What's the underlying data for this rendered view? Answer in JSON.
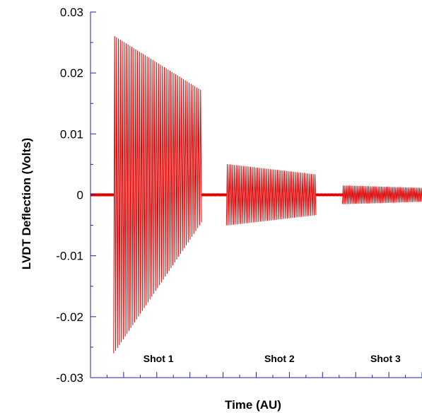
{
  "chart_data": {
    "type": "line",
    "title": "",
    "xlabel": "Time (AU)",
    "ylabel": "LVDT Deflection (Volts)",
    "ylim": [
      -0.03,
      0.03
    ],
    "yticks": [
      -0.03,
      -0.02,
      -0.01,
      0,
      0.01,
      0.02,
      0.03
    ],
    "ytick_labels": [
      "-0.03",
      "-0.02",
      "-0.01",
      "0",
      "0.01",
      "0.02",
      "0.03"
    ],
    "xlim": [
      0,
      100
    ],
    "grid": false,
    "legend": "none",
    "line_color": "#e00000",
    "axis_color": "#2222aa",
    "annotations": [
      "Shot 1",
      "Shot 2",
      "Shot 3"
    ],
    "series": [
      {
        "segments": [
          {
            "x_start": 0,
            "x_end": 7,
            "kind": "baseline",
            "amplitude": 0.0002
          },
          {
            "x_start": 7,
            "x_end": 33.5,
            "kind": "oscillation",
            "cycles": 46,
            "amp_start": 0.026,
            "amp_end": 0.017,
            "min_start": -0.026,
            "min_end": -0.0045
          },
          {
            "x_start": 33.5,
            "x_end": 41,
            "kind": "baseline",
            "amplitude": 0.0002
          },
          {
            "x_start": 41,
            "x_end": 68,
            "kind": "oscillation",
            "cycles": 50,
            "amp_start": 0.005,
            "amp_end": 0.0033,
            "min_start": -0.005,
            "min_end": -0.0033
          },
          {
            "x_start": 68,
            "x_end": 76,
            "kind": "baseline",
            "amplitude": 0.0002
          },
          {
            "x_start": 76,
            "x_end": 100,
            "kind": "oscillation",
            "cycles": 50,
            "amp_start": 0.0015,
            "amp_end": 0.0011,
            "min_start": -0.0015,
            "min_end": -0.0011
          }
        ]
      }
    ]
  }
}
